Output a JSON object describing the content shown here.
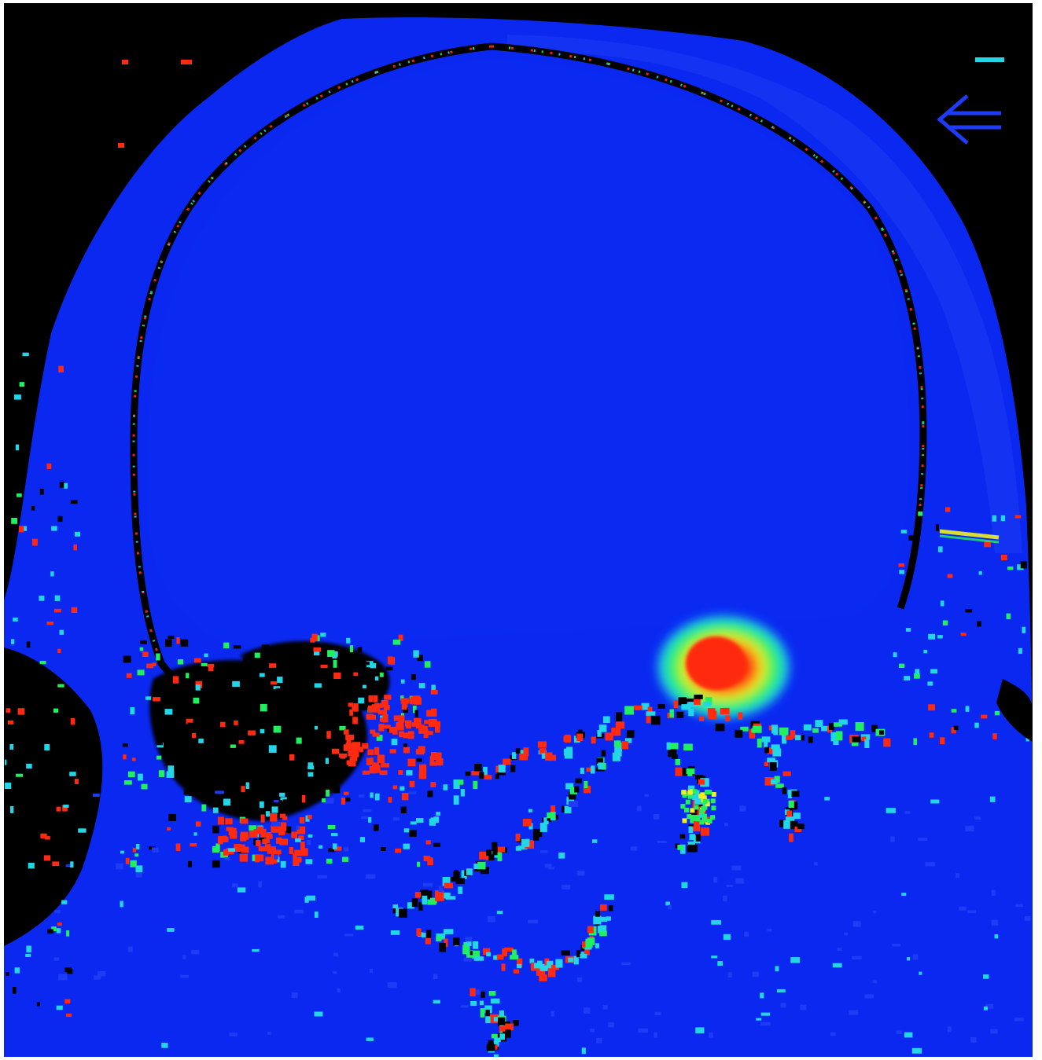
{
  "image": {
    "kind": "sagittal head scan, false-color heat map",
    "colors": {
      "background": "#000000",
      "tissue": "#0a28f0",
      "tissue_light": "#1e3cf5",
      "cyan": "#22d6e8",
      "green": "#20f060",
      "yellow": "#f0f020",
      "red": "#ff2a10",
      "void": "#000000"
    },
    "icons": [
      "arrow-left-icon",
      "marker-dash-icon"
    ]
  }
}
